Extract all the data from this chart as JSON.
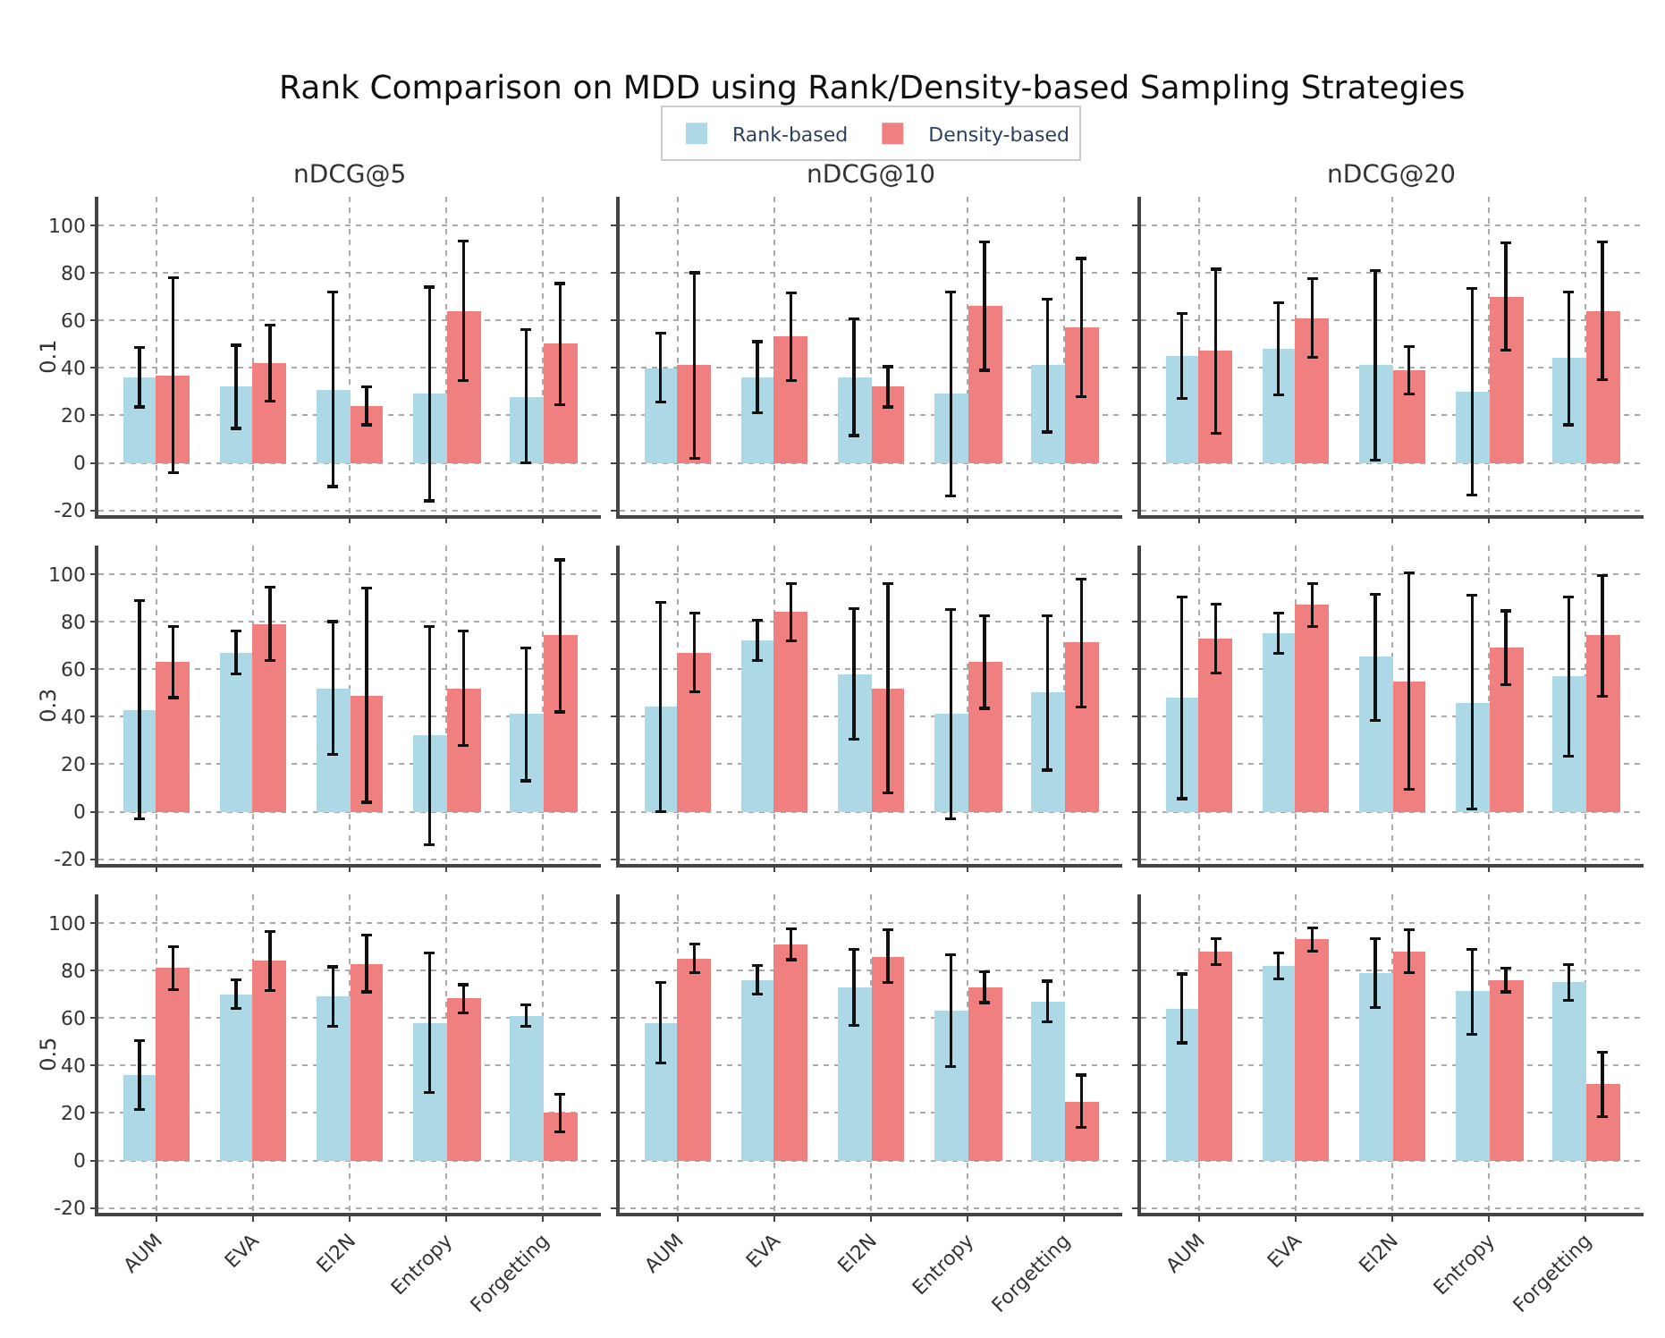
{
  "chart_data": [
    {
      "type": "bar",
      "title": "nDCG@5",
      "ylabel": "0.1",
      "annotations": [
        "Rank Comparison on MDD using Rank/Density-based Sampling Strategies"
      ],
      "legend": "top",
      "grid": true,
      "tick_labels": "y",
      "categories": [
        "AUM",
        "EVA",
        "El2N",
        "Entropy",
        "Forgetting"
      ],
      "ylim": [
        -22,
        112
      ],
      "yticks": [
        -20,
        0,
        20,
        40,
        60,
        80,
        100
      ],
      "series": [
        {
          "name": "Rank-based",
          "color": "#add8e6",
          "values": [
            36,
            32,
            31,
            29,
            28
          ],
          "errors": [
            12.5,
            17.5,
            41,
            45,
            28
          ]
        },
        {
          "name": "Density-based",
          "color": "#f08080",
          "values": [
            37,
            42,
            24,
            64,
            50
          ],
          "errors": [
            41,
            16,
            8,
            29.5,
            25.5
          ]
        }
      ]
    },
    {
      "type": "bar",
      "title": "nDCG@10",
      "grid": true,
      "tick_labels": false,
      "categories": [
        "AUM",
        "EVA",
        "El2N",
        "Entropy",
        "Forgetting"
      ],
      "ylim": [
        -22,
        112
      ],
      "yticks": [
        -20,
        0,
        20,
        40,
        60,
        80,
        100
      ],
      "series": [
        {
          "name": "Rank-based",
          "color": "#add8e6",
          "values": [
            40,
            36,
            36,
            29,
            41
          ],
          "errors": [
            14.5,
            15,
            24.5,
            43,
            28
          ]
        },
        {
          "name": "Density-based",
          "color": "#f08080",
          "values": [
            41,
            53,
            32,
            66,
            57
          ],
          "errors": [
            39,
            18.5,
            8.5,
            27,
            29
          ]
        }
      ]
    },
    {
      "type": "bar",
      "title": "nDCG@20",
      "grid": true,
      "tick_labels": false,
      "categories": [
        "AUM",
        "EVA",
        "El2N",
        "Entropy",
        "Forgetting"
      ],
      "ylim": [
        -22,
        112
      ],
      "yticks": [
        -20,
        0,
        20,
        40,
        60,
        80,
        100
      ],
      "series": [
        {
          "name": "Rank-based",
          "color": "#add8e6",
          "values": [
            45,
            48,
            41,
            30,
            44
          ],
          "errors": [
            18,
            19.5,
            40,
            43.5,
            28
          ]
        },
        {
          "name": "Density-based",
          "color": "#f08080",
          "values": [
            47,
            61,
            39,
            70,
            64
          ],
          "errors": [
            34.5,
            16.5,
            10,
            22.5,
            29
          ]
        }
      ]
    },
    {
      "type": "bar",
      "ylabel": "0.3",
      "grid": true,
      "tick_labels": "y",
      "categories": [
        "AUM",
        "EVA",
        "El2N",
        "Entropy",
        "Forgetting"
      ],
      "ylim": [
        -22,
        112
      ],
      "yticks": [
        -20,
        0,
        20,
        40,
        60,
        80,
        100
      ],
      "series": [
        {
          "name": "Rank-based",
          "color": "#add8e6",
          "values": [
            43,
            67,
            52,
            32,
            41
          ],
          "errors": [
            46,
            9,
            28,
            46,
            28
          ]
        },
        {
          "name": "Density-based",
          "color": "#f08080",
          "values": [
            63,
            79,
            49,
            52,
            74
          ],
          "errors": [
            15,
            15.5,
            45,
            24,
            32
          ]
        }
      ]
    },
    {
      "type": "bar",
      "grid": true,
      "tick_labels": false,
      "categories": [
        "AUM",
        "EVA",
        "El2N",
        "Entropy",
        "Forgetting"
      ],
      "ylim": [
        -22,
        112
      ],
      "yticks": [
        -20,
        0,
        20,
        40,
        60,
        80,
        100
      ],
      "series": [
        {
          "name": "Rank-based",
          "color": "#add8e6",
          "values": [
            44,
            72,
            58,
            41,
            50
          ],
          "errors": [
            44,
            8.5,
            27.5,
            44,
            32.5
          ]
        },
        {
          "name": "Density-based",
          "color": "#f08080",
          "values": [
            67,
            84,
            52,
            63,
            71
          ],
          "errors": [
            16.5,
            12,
            44,
            19.5,
            27
          ]
        }
      ]
    },
    {
      "type": "bar",
      "grid": true,
      "tick_labels": false,
      "categories": [
        "AUM",
        "EVA",
        "El2N",
        "Entropy",
        "Forgetting"
      ],
      "ylim": [
        -22,
        112
      ],
      "yticks": [
        -20,
        0,
        20,
        40,
        60,
        80,
        100
      ],
      "series": [
        {
          "name": "Rank-based",
          "color": "#add8e6",
          "values": [
            48,
            75,
            65,
            46,
            57
          ],
          "errors": [
            42.5,
            8.5,
            26.5,
            45,
            33.5
          ]
        },
        {
          "name": "Density-based",
          "color": "#f08080",
          "values": [
            73,
            87,
            55,
            69,
            74
          ],
          "errors": [
            14.5,
            9,
            45.5,
            15.5,
            25.5
          ]
        }
      ]
    },
    {
      "type": "bar",
      "ylabel": "0.5",
      "grid": true,
      "categories": [
        "AUM",
        "EVA",
        "El2N",
        "Entropy",
        "Forgetting"
      ],
      "ylim": [
        -22,
        112
      ],
      "yticks": [
        -20,
        0,
        20,
        40,
        60,
        80,
        100
      ],
      "series": [
        {
          "name": "Rank-based",
          "color": "#add8e6",
          "values": [
            36,
            70,
            69,
            58,
            61
          ],
          "errors": [
            14.5,
            6,
            12.5,
            29.5,
            4.5
          ]
        },
        {
          "name": "Density-based",
          "color": "#f08080",
          "values": [
            81,
            84,
            83,
            68,
            20
          ],
          "errors": [
            9,
            12.5,
            12,
            6,
            8
          ]
        }
      ]
    },
    {
      "type": "bar",
      "grid": true,
      "tick_labels": "x",
      "categories": [
        "AUM",
        "EVA",
        "El2N",
        "Entropy",
        "Forgetting"
      ],
      "ylim": [
        -22,
        112
      ],
      "yticks": [
        -20,
        0,
        20,
        40,
        60,
        80,
        100
      ],
      "series": [
        {
          "name": "Rank-based",
          "color": "#add8e6",
          "values": [
            58,
            76,
            73,
            63,
            67
          ],
          "errors": [
            17,
            6,
            16,
            23.5,
            8.5
          ]
        },
        {
          "name": "Density-based",
          "color": "#f08080",
          "values": [
            85,
            91,
            86,
            73,
            25
          ],
          "errors": [
            6,
            6.5,
            11,
            6.5,
            11
          ]
        }
      ]
    },
    {
      "type": "bar",
      "grid": true,
      "tick_labels": "x",
      "categories": [
        "AUM",
        "EVA",
        "El2N",
        "Entropy",
        "Forgetting"
      ],
      "ylim": [
        -22,
        112
      ],
      "yticks": [
        -20,
        0,
        20,
        40,
        60,
        80,
        100
      ],
      "series": [
        {
          "name": "Rank-based",
          "color": "#add8e6",
          "values": [
            64,
            82,
            79,
            71,
            75
          ],
          "errors": [
            14.5,
            5.5,
            14.5,
            18,
            7.5
          ]
        },
        {
          "name": "Density-based",
          "color": "#f08080",
          "values": [
            88,
            93,
            88,
            76,
            32
          ],
          "errors": [
            5.5,
            5,
            9,
            5,
            13.5
          ]
        }
      ]
    }
  ]
}
